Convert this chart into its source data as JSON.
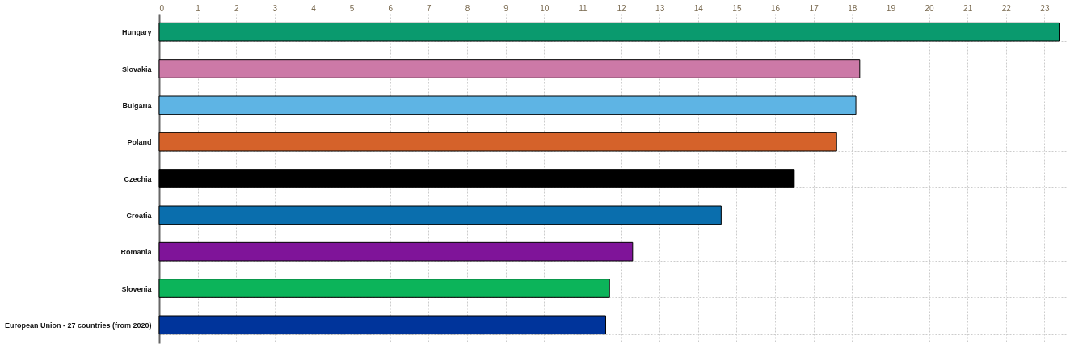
{
  "chart_data": {
    "type": "bar",
    "orientation": "horizontal",
    "categories": [
      "Hungary",
      "Slovakia",
      "Bulgaria",
      "Poland",
      "Czechia",
      "Croatia",
      "Romania",
      "Slovenia",
      "European Union - 27 countries (from 2020)"
    ],
    "values": [
      23.4,
      18.2,
      18.1,
      17.6,
      16.5,
      14.6,
      12.3,
      11.7,
      11.6
    ],
    "colors": [
      "#0a9a6e",
      "#cc79a7",
      "#5eb4e4",
      "#d5622a",
      "#000000",
      "#0a6ead",
      "#7f1499",
      "#0cb45a",
      "#00349b"
    ],
    "xlim": [
      0,
      23.6
    ],
    "xticks": [
      0,
      1,
      2,
      3,
      4,
      5,
      6,
      7,
      8,
      9,
      10,
      11,
      12,
      13,
      14,
      15,
      16,
      17,
      18,
      19,
      20,
      21,
      22,
      23
    ],
    "grid": true
  }
}
